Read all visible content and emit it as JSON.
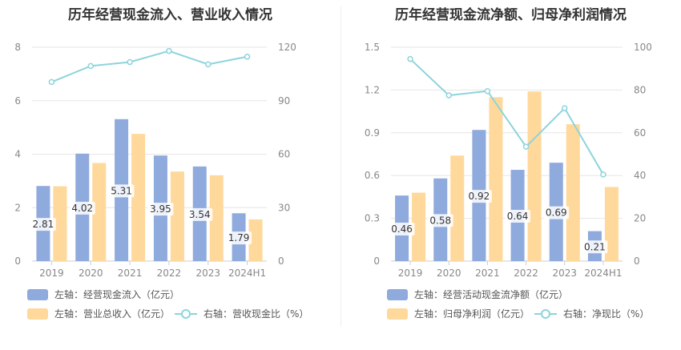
{
  "colors": {
    "left_bar": "#8faadc",
    "second_bar": "#ffd89b",
    "right_line": "#8dd4dc",
    "grid": "#e6e6e6",
    "axis_text": "#888888",
    "label_text": "#333333"
  },
  "chart_data": [
    {
      "type": "bar",
      "title": "历年经营现金流入、营业收入情况",
      "categories": [
        "2019",
        "2020",
        "2021",
        "2022",
        "2023",
        "2024H1"
      ],
      "y_left": {
        "ylim": [
          0,
          8
        ],
        "ticks": [
          "0",
          "2",
          "4",
          "6",
          "8"
        ]
      },
      "y_right": {
        "ylim": [
          0,
          120
        ],
        "ticks": [
          "0",
          "30",
          "60",
          "90",
          "120"
        ]
      },
      "series": [
        {
          "name": "左轴：经营现金流入（亿元）",
          "kind": "bar",
          "axis": "left",
          "values": [
            2.81,
            4.02,
            5.31,
            3.95,
            3.54,
            1.79
          ],
          "labels": [
            "2.81",
            "4.02",
            "5.31",
            "3.95",
            "3.54",
            "1.79"
          ]
        },
        {
          "name": "左轴：营业总收入（亿元）",
          "kind": "bar",
          "axis": "left",
          "values": [
            2.8,
            3.67,
            4.76,
            3.35,
            3.21,
            1.56
          ]
        },
        {
          "name": "右轴：营收现金比（%）",
          "kind": "line",
          "axis": "right",
          "values": [
            100.5,
            109.5,
            111.7,
            117.9,
            110.4,
            114.7
          ]
        }
      ],
      "legend": [
        {
          "label": "左轴：经营现金流入（亿元）",
          "kind": "bar",
          "series": 0
        },
        {
          "label": "左轴：营业总收入（亿元）",
          "kind": "bar",
          "series": 1
        },
        {
          "label": "右轴：营收现金比（%）",
          "kind": "line",
          "series": 2
        }
      ]
    },
    {
      "type": "bar",
      "title": "历年经营现金流净额、归母净利润情况",
      "categories": [
        "2019",
        "2020",
        "2021",
        "2022",
        "2023",
        "2024H1"
      ],
      "y_left": {
        "ylim": [
          0,
          1.5
        ],
        "ticks": [
          "0",
          "0.3",
          "0.6",
          "0.9",
          "1.2",
          "1.5"
        ]
      },
      "y_right": {
        "ylim": [
          0,
          100
        ],
        "ticks": [
          "0",
          "20",
          "40",
          "60",
          "80",
          "100"
        ]
      },
      "series": [
        {
          "name": "左轴：经营活动现金流净额（亿元）",
          "kind": "bar",
          "axis": "left",
          "values": [
            0.46,
            0.58,
            0.92,
            0.64,
            0.69,
            0.21
          ],
          "labels": [
            "0.46",
            "0.58",
            "0.92",
            "0.64",
            "0.69",
            "0.21"
          ]
        },
        {
          "name": "左轴：归母净利润（亿元）",
          "kind": "bar",
          "axis": "left",
          "values": [
            0.48,
            0.74,
            1.15,
            1.19,
            0.96,
            0.52
          ]
        },
        {
          "name": "右轴：净现比（%）",
          "kind": "line",
          "axis": "right",
          "values": [
            94.5,
            77.5,
            79.5,
            53.5,
            71.5,
            40.5
          ]
        }
      ],
      "legend": [
        {
          "label": "左轴：经营活动现金流净额（亿元）",
          "kind": "bar",
          "series": 0
        },
        {
          "label": "左轴：归母净利润（亿元）",
          "kind": "bar",
          "series": 1
        },
        {
          "label": "右轴：净现比（%）",
          "kind": "line",
          "series": 2
        }
      ]
    }
  ]
}
